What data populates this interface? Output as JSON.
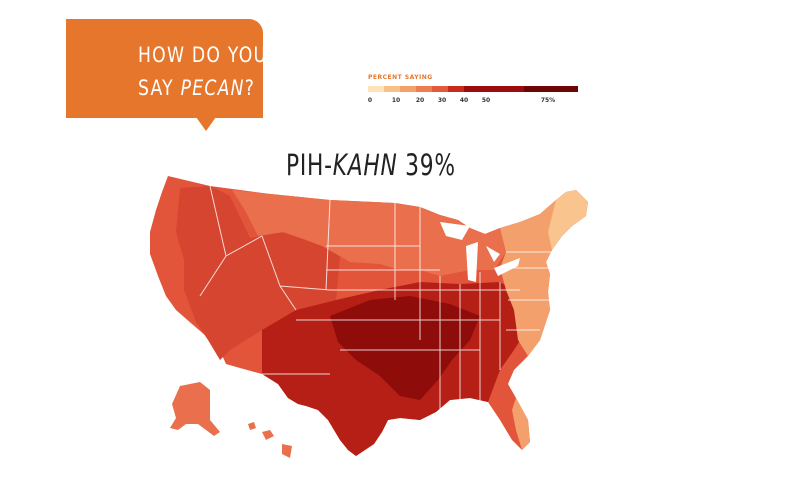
{
  "callout": {
    "line1": "HOW DO YOU",
    "line2_prefix": "SAY ",
    "line2_word": "PECAN",
    "line2_suffix": "?"
  },
  "legend": {
    "title": "PERCENT SAYING",
    "ticks": [
      "0",
      "10",
      "20",
      "30",
      "40",
      "50",
      "75%"
    ],
    "colors": [
      "#fde3b8",
      "#f9c189",
      "#f4a066",
      "#ee7d50",
      "#e25a3c",
      "#c82a1c",
      "#9b0d0d",
      "#6e0505"
    ]
  },
  "heading": {
    "word": "PIH-",
    "word_emphasis": "KAHN",
    "percent": "39%"
  },
  "map": {
    "colors": {
      "west": "#e2553a",
      "mountain": "#d64530",
      "south": "#b51f16",
      "deep_south": "#8e0c0a",
      "midwest": "#ea6f4c",
      "northeast": "#f3a06c",
      "new_england": "#f9c48d",
      "alaska": "#ea6f4c",
      "hawaii": "#ea6f4c",
      "state_lines": "#ffffff"
    }
  }
}
